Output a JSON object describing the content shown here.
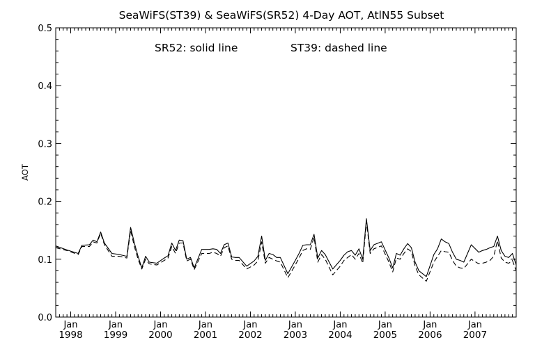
{
  "chart_data": {
    "type": "line",
    "title": "SeaWiFS(ST39) & SeaWiFS(SR52) 4-Day AOT, AtlN55 Subset",
    "annotation": {
      "solid": "SR52: solid line",
      "dashed": "ST39: dashed line"
    },
    "xlabel": "",
    "ylabel": "AOT",
    "xlim": [
      "1997-09",
      "2007-12"
    ],
    "ylim": [
      0,
      0.5
    ],
    "yticks": [
      0.0,
      0.1,
      0.2,
      0.3,
      0.4,
      0.5
    ],
    "ytick_labels": [
      "0.0",
      "0.1",
      "0.2",
      "0.3",
      "0.4",
      "0.5"
    ],
    "xtick_month_label": "Jan",
    "xtick_year_labels": [
      "1998",
      "1999",
      "2000",
      "2001",
      "2002",
      "2003",
      "2004",
      "2005",
      "2006",
      "2007"
    ],
    "grid": false,
    "x": [
      "1997-09",
      "1997-12",
      "1998-03",
      "1998-04",
      "1998-06",
      "1998-07",
      "1998-08",
      "1998-09",
      "1998-10",
      "1998-12",
      "1999-02",
      "1999-04",
      "1999-05",
      "1999-06",
      "1999-07",
      "1999-08",
      "1999-09",
      "1999-10",
      "1999-12",
      "2000-02",
      "2000-03",
      "2000-04",
      "2000-05",
      "2000-06",
      "2000-07",
      "2000-08",
      "2000-09",
      "2000-10",
      "2000-12",
      "2001-02",
      "2001-03",
      "2001-04",
      "2001-05",
      "2001-06",
      "2001-07",
      "2001-08",
      "2001-09",
      "2001-10",
      "2001-12",
      "2002-02",
      "2002-03",
      "2002-04",
      "2002-05",
      "2002-06",
      "2002-07",
      "2002-08",
      "2002-09",
      "2002-11",
      "2003-01",
      "2003-02",
      "2003-03",
      "2003-04",
      "2003-05",
      "2003-06",
      "2003-07",
      "2003-08",
      "2003-09",
      "2003-11",
      "2004-01",
      "2004-02",
      "2004-03",
      "2004-04",
      "2004-05",
      "2004-06",
      "2004-07",
      "2004-08",
      "2004-09",
      "2004-10",
      "2004-12",
      "2005-02",
      "2005-03",
      "2005-04",
      "2005-05",
      "2005-06",
      "2005-07",
      "2005-08",
      "2005-09",
      "2005-10",
      "2005-12",
      "2006-02",
      "2006-03",
      "2006-04",
      "2006-05",
      "2006-06",
      "2006-07",
      "2006-08",
      "2006-09",
      "2006-10",
      "2006-12",
      "2007-02",
      "2007-03",
      "2007-04",
      "2007-05",
      "2007-06",
      "2007-07",
      "2007-08",
      "2007-09",
      "2007-10",
      "2007-11",
      "2007-12"
    ],
    "series": [
      {
        "name": "SR52",
        "style": "solid",
        "color": "#000000",
        "values": [
          0.123,
          0.116,
          0.11,
          0.124,
          0.125,
          0.133,
          0.13,
          0.147,
          0.128,
          0.11,
          0.108,
          0.105,
          0.155,
          0.128,
          0.105,
          0.085,
          0.105,
          0.095,
          0.093,
          0.102,
          0.106,
          0.128,
          0.115,
          0.133,
          0.132,
          0.1,
          0.103,
          0.085,
          0.117,
          0.117,
          0.118,
          0.117,
          0.11,
          0.125,
          0.128,
          0.104,
          0.103,
          0.103,
          0.088,
          0.097,
          0.105,
          0.14,
          0.098,
          0.11,
          0.108,
          0.103,
          0.103,
          0.075,
          0.098,
          0.11,
          0.124,
          0.125,
          0.125,
          0.143,
          0.102,
          0.115,
          0.108,
          0.083,
          0.098,
          0.107,
          0.113,
          0.115,
          0.107,
          0.118,
          0.1,
          0.17,
          0.115,
          0.125,
          0.13,
          0.102,
          0.085,
          0.11,
          0.107,
          0.118,
          0.127,
          0.12,
          0.095,
          0.08,
          0.07,
          0.108,
          0.118,
          0.135,
          0.13,
          0.127,
          0.112,
          0.1,
          0.098,
          0.095,
          0.125,
          0.112,
          0.115,
          0.117,
          0.12,
          0.122,
          0.14,
          0.115,
          0.105,
          0.103,
          0.11,
          0.09
        ]
      },
      {
        "name": "ST39",
        "style": "dashed",
        "color": "#000000",
        "values": [
          0.12,
          0.115,
          0.108,
          0.122,
          0.122,
          0.13,
          0.128,
          0.145,
          0.125,
          0.105,
          0.105,
          0.102,
          0.15,
          0.122,
          0.1,
          0.083,
          0.1,
          0.092,
          0.09,
          0.098,
          0.102,
          0.122,
          0.11,
          0.128,
          0.128,
          0.097,
          0.1,
          0.082,
          0.11,
          0.11,
          0.112,
          0.11,
          0.105,
          0.12,
          0.123,
          0.1,
          0.098,
          0.098,
          0.083,
          0.09,
          0.097,
          0.13,
          0.093,
          0.103,
          0.1,
          0.097,
          0.095,
          0.068,
          0.09,
          0.102,
          0.115,
          0.118,
          0.117,
          0.138,
          0.095,
          0.108,
          0.1,
          0.073,
          0.088,
          0.098,
          0.103,
          0.108,
          0.1,
          0.11,
          0.093,
          0.165,
          0.11,
          0.118,
          0.123,
          0.095,
          0.078,
          0.102,
          0.1,
          0.11,
          0.118,
          0.113,
          0.088,
          0.073,
          0.062,
          0.095,
          0.105,
          0.115,
          0.113,
          0.112,
          0.098,
          0.088,
          0.085,
          0.084,
          0.1,
          0.092,
          0.093,
          0.095,
          0.098,
          0.105,
          0.132,
          0.102,
          0.095,
          0.093,
          0.098,
          0.08
        ]
      }
    ]
  }
}
